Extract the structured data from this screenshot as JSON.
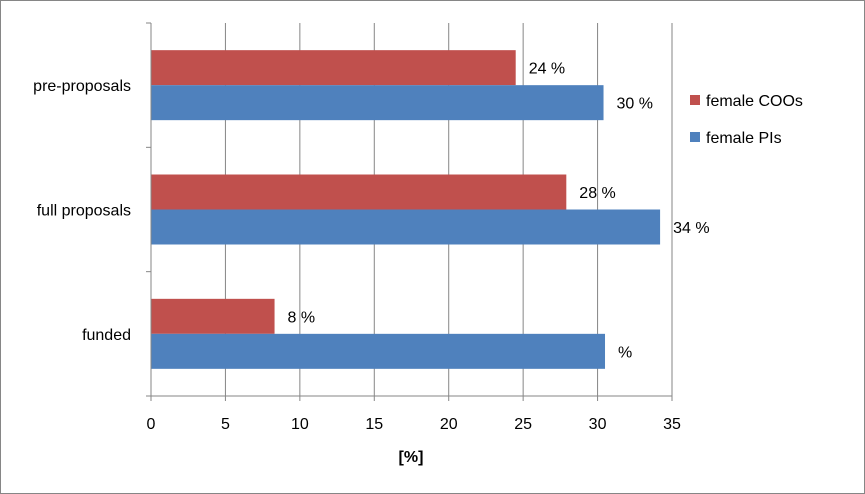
{
  "chart_data": {
    "type": "bar",
    "orientation": "horizontal",
    "categories": [
      "pre-proposals",
      "full proposals",
      "funded"
    ],
    "series": [
      {
        "name": "female COOs",
        "color": "#C0504D",
        "values": [
          24.5,
          27.9,
          8.3
        ],
        "labels": [
          "24 %",
          "28 %",
          "8 %"
        ]
      },
      {
        "name": "female PIs",
        "color": "#4F81BD",
        "values": [
          30.4,
          34.2,
          30.5
        ],
        "labels": [
          "30 %",
          "34 %",
          "%"
        ]
      }
    ],
    "xlabel": "[%]",
    "ylabel": "",
    "xlim": [
      0,
      35
    ],
    "xticks": [
      "0",
      "5",
      "10",
      "15",
      "20",
      "25",
      "30",
      "35"
    ],
    "grid": "vertical",
    "legend_position": "right"
  }
}
